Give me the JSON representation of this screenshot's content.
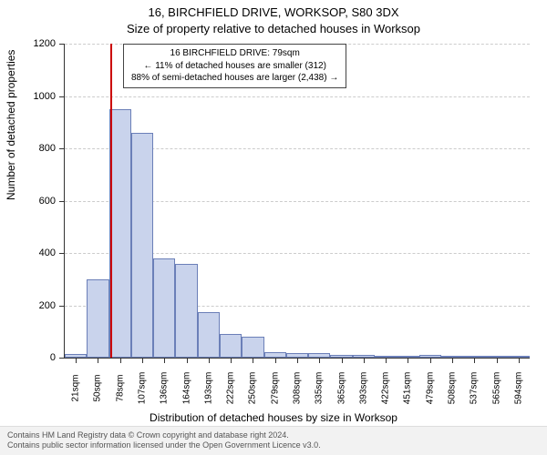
{
  "header": {
    "address": "16, BIRCHFIELD DRIVE, WORKSOP, S80 3DX",
    "subtitle": "Size of property relative to detached houses in Worksop"
  },
  "chart": {
    "type": "histogram",
    "ylabel": "Number of detached properties",
    "xlabel": "Distribution of detached houses by size in Worksop",
    "ylim": [
      0,
      1200
    ],
    "ytick_step": 200,
    "yticks": [
      0,
      200,
      400,
      600,
      800,
      1000,
      1200
    ],
    "x_categories": [
      "21sqm",
      "50sqm",
      "78sqm",
      "107sqm",
      "136sqm",
      "164sqm",
      "193sqm",
      "222sqm",
      "250sqm",
      "279sqm",
      "308sqm",
      "335sqm",
      "365sqm",
      "393sqm",
      "422sqm",
      "451sqm",
      "479sqm",
      "508sqm",
      "537sqm",
      "565sqm",
      "594sqm"
    ],
    "bar_values": [
      15,
      300,
      950,
      860,
      380,
      360,
      175,
      90,
      80,
      22,
      18,
      16,
      10,
      12,
      5,
      3,
      10,
      2,
      2,
      2,
      2
    ],
    "bar_fill": "#c9d3ec",
    "bar_stroke": "#6b7fb8",
    "bar_stroke_width": 1,
    "bar_width_ratio": 1.0,
    "marker": {
      "position_category_index": 2.04,
      "color": "#cc0000",
      "width": 2
    },
    "background_color": "#ffffff",
    "grid_color": "#cccccc",
    "axis_color": "#333333",
    "tick_fontsize": 11,
    "xlabel_fontsize": 10,
    "title_fontsize": 13
  },
  "info_box": {
    "line1": "16 BIRCHFIELD DRIVE: 79sqm",
    "line2": "← 11% of detached houses are smaller (312)",
    "line3": "88% of semi-detached houses are larger (2,438) →"
  },
  "footer": {
    "line1": "Contains HM Land Registry data © Crown copyright and database right 2024.",
    "line2": "Contains public sector information licensed under the Open Government Licence v3.0."
  }
}
